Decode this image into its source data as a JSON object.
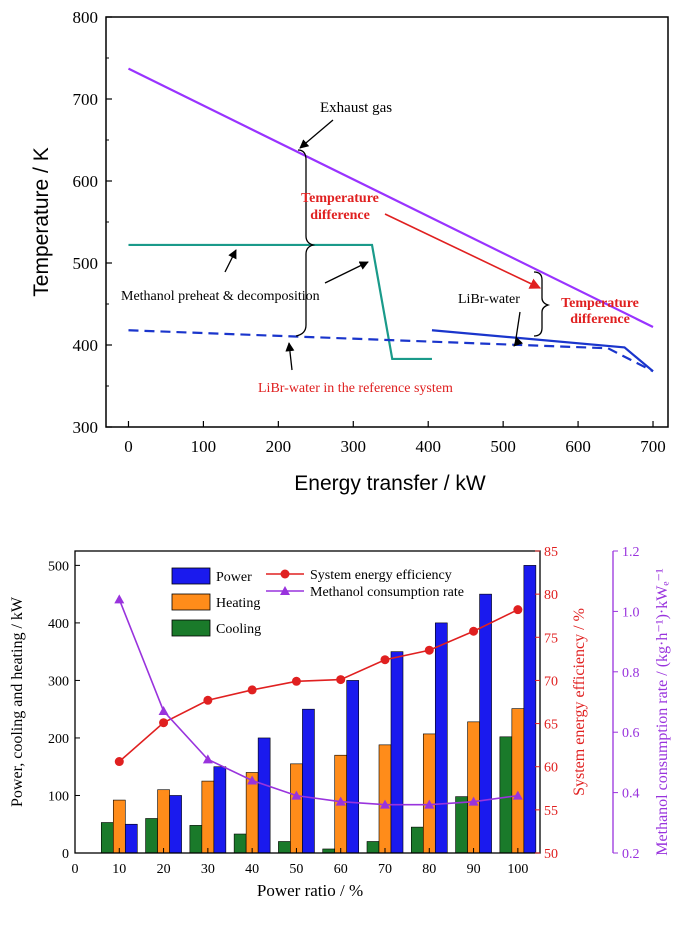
{
  "chart_data": [
    {
      "type": "line",
      "xlabel": "Energy transfer / kW",
      "ylabel": "Temperature / K",
      "xlim": [
        -30,
        720
      ],
      "ylim": [
        300,
        800
      ],
      "x_ticks": [
        0,
        100,
        200,
        300,
        400,
        500,
        600,
        700
      ],
      "y_ticks": [
        300,
        400,
        500,
        600,
        700,
        800
      ],
      "grid": false,
      "series": [
        {
          "name": "Exhaust gas",
          "color": "#9933ff",
          "style": "solid",
          "x": [
            0,
            700
          ],
          "y": [
            737,
            422
          ]
        },
        {
          "name": "Methanol preheat & decomposition",
          "color": "#1a9a8a",
          "style": "solid",
          "x": [
            0,
            325,
            352,
            405
          ],
          "y": [
            522,
            522,
            383,
            383
          ]
        },
        {
          "name": "LiBr-water",
          "color": "#1a35cc",
          "style": "solid",
          "x": [
            405,
            662,
            700
          ],
          "y": [
            418,
            397,
            368
          ]
        },
        {
          "name": "LiBr-water in the reference system",
          "color": "#1a35cc",
          "style": "dashed",
          "x": [
            0,
            640,
            700
          ],
          "y": [
            418,
            396,
            368
          ]
        }
      ],
      "annotations": [
        {
          "text": "Exhaust gas",
          "color": "#000000"
        },
        {
          "text": "Temperature difference",
          "color": "#e02020"
        },
        {
          "text": "Methanol preheat & decomposition",
          "color": "#000000"
        },
        {
          "text": "LiBr-water",
          "color": "#000000"
        },
        {
          "text": "Temperature difference",
          "color": "#e02020"
        },
        {
          "text": "LiBr-water in the reference system",
          "color": "#e02020"
        }
      ]
    },
    {
      "type": "bar",
      "xlabel": "Power ratio / %",
      "ylabel": "Power, cooling and heating / kW",
      "y2label": "System energy efficiency / %",
      "y3label": "Methanol consumption rate / (kg·h⁻¹)·kWₑ⁻¹",
      "xlim": [
        0,
        105
      ],
      "ylim": [
        0,
        525
      ],
      "y2lim": [
        50,
        85
      ],
      "y3lim": [
        0.2,
        1.2
      ],
      "x_ticks": [
        0,
        10,
        20,
        30,
        40,
        50,
        60,
        70,
        80,
        90,
        100
      ],
      "y_ticks": [
        0,
        100,
        200,
        300,
        400,
        500
      ],
      "y2_ticks": [
        50,
        55,
        60,
        65,
        70,
        75,
        80,
        85
      ],
      "y3_ticks": [
        0.2,
        0.4,
        0.6,
        0.8,
        1.0,
        1.2
      ],
      "categories": [
        10,
        20,
        30,
        40,
        50,
        60,
        70,
        80,
        90,
        100
      ],
      "series": [
        {
          "name": "Cooling",
          "kind": "bar",
          "axis": "left",
          "color": "#1a7a2a",
          "values": [
            53,
            60,
            48,
            33,
            20,
            7,
            20,
            45,
            98,
            202
          ]
        },
        {
          "name": "Heating",
          "kind": "bar",
          "axis": "left",
          "color": "#ff8c1a",
          "values": [
            92,
            110,
            125,
            140,
            155,
            170,
            188,
            207,
            228,
            251
          ]
        },
        {
          "name": "Power",
          "kind": "bar",
          "axis": "left",
          "color": "#1a1aee",
          "values": [
            50,
            100,
            150,
            200,
            250,
            300,
            350,
            400,
            450,
            500
          ]
        },
        {
          "name": "System energy efficiency",
          "kind": "line",
          "axis": "right1",
          "color": "#e02020",
          "marker": "circle",
          "values": [
            60.6,
            65.1,
            67.7,
            68.9,
            69.9,
            70.1,
            72.4,
            73.5,
            75.7,
            78.2
          ]
        },
        {
          "name": "Methanol consumption rate",
          "kind": "line",
          "axis": "right2",
          "color": "#9933dd",
          "marker": "triangle",
          "values": [
            1.04,
            0.67,
            0.51,
            0.44,
            0.39,
            0.37,
            0.36,
            0.36,
            0.37,
            0.39
          ]
        }
      ],
      "legend_position": "top-left"
    }
  ]
}
